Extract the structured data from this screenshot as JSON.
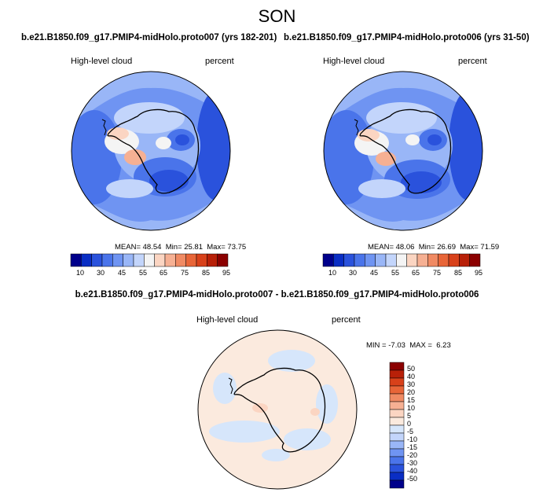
{
  "season": "SON",
  "panels": [
    {
      "case": "b.e21.B1850.f09_g17.PMIP4-midHolo.proto007 (yrs 182-201)",
      "variable": "High-level cloud",
      "units": "percent",
      "stats": {
        "mean_label": "MEAN=",
        "mean": "48.54",
        "min_label": "Min=",
        "min": "25.81",
        "max_label": "Max=",
        "max": "73.75"
      }
    },
    {
      "case": "b.e21.B1850.f09_g17.PMIP4-midHolo.proto006 (yrs 31-50)",
      "variable": "High-level cloud",
      "units": "percent",
      "stats": {
        "mean_label": "MEAN=",
        "mean": "48.06",
        "min_label": "Min=",
        "min": "26.69",
        "max_label": "Max=",
        "max": "71.59"
      }
    }
  ],
  "diff_panel": {
    "title": "b.e21.B1850.f09_g17.PMIP4-midHolo.proto007 - b.e21.B1850.f09_g17.PMIP4-midHolo.proto006",
    "variable": "High-level cloud",
    "units": "percent",
    "stats": {
      "min_label": "MIN =",
      "min": "-7.03",
      "max_label": "MAX =",
      "max": "6.23"
    }
  },
  "colorbar_main": {
    "tick_labels": [
      "10",
      "30",
      "45",
      "55",
      "65",
      "75",
      "85",
      "95"
    ],
    "colors": [
      "#00008b",
      "#0a2ec4",
      "#2a52dc",
      "#4a74ea",
      "#6f94f2",
      "#99b6f7",
      "#c3d5fb",
      "#f4f4f4",
      "#fbd5c2",
      "#f6b093",
      "#f08a63",
      "#e86538",
      "#d8411a",
      "#b82008",
      "#8b0000"
    ]
  },
  "colorbar_diff": {
    "tick_labels": [
      "50",
      "40",
      "30",
      "20",
      "15",
      "10",
      "5",
      "0",
      "-5",
      "-10",
      "-15",
      "-20",
      "-30",
      "-40",
      "-50"
    ],
    "colors": [
      "#8b0000",
      "#b82008",
      "#d8411a",
      "#e86538",
      "#f08a63",
      "#f6b093",
      "#fbd5c2",
      "#fbeade",
      "#d6e6fb",
      "#c3d5fb",
      "#99b6f7",
      "#6f94f2",
      "#4a74ea",
      "#2a52dc",
      "#0a2ec4",
      "#00008b"
    ]
  }
}
